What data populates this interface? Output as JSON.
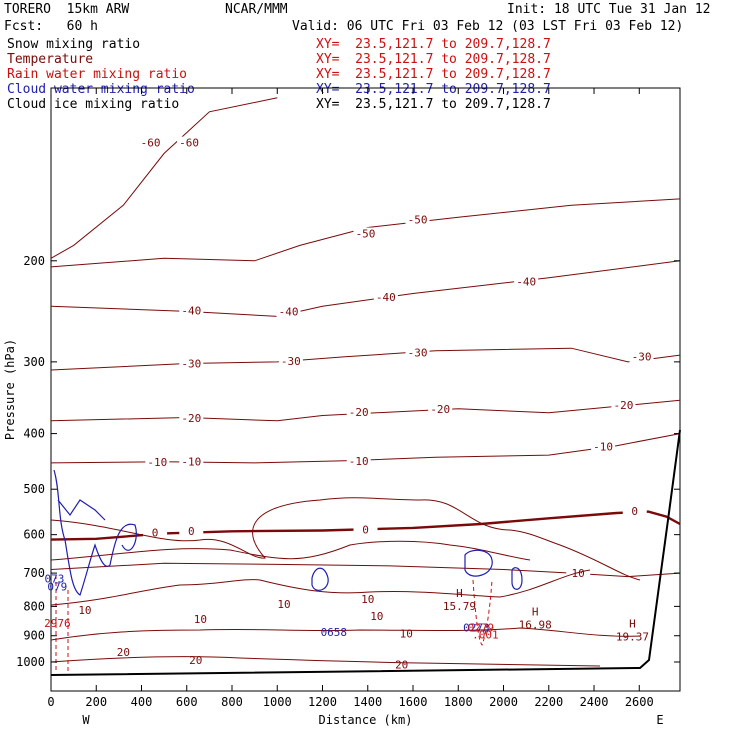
{
  "header": {
    "model": "TORERO  15km ARW",
    "org": "NCAR/MMM",
    "init": "Init: 18 UTC Tue 31 Jan 12",
    "fcst": "Fcst:   60 h",
    "valid": "Valid: 06 UTC Fri 03 Feb 12 (03 LST Fri 03 Feb 12)"
  },
  "legend": {
    "items": [
      {
        "label": "Snow mixing ratio",
        "color": "#000000",
        "xy": "XY=  23.5,121.7 to 209.7,128.7"
      },
      {
        "label": "Temperature",
        "color": "#7a0a0a",
        "xy": "XY=  23.5,121.7 to 209.7,128.7"
      },
      {
        "label": "Rain water mixing ratio",
        "color": "#cc1010",
        "xy": "XY=  23.5,121.7 to 209.7,128.7"
      },
      {
        "label": "Cloud water mixing ratio",
        "color": "#2020b0",
        "xy": "XY=  23.5,121.7 to 209.7,128.7"
      },
      {
        "label": "Cloud ice mixing ratio",
        "color": "#000000",
        "xy": "XY=  23.5,121.7 to 209.7,128.7"
      }
    ]
  },
  "chart_data": {
    "type": "contour cross-section",
    "xlabel": "Distance (km)",
    "ylabel": "Pressure (hPa)",
    "xlim": [
      0,
      2780
    ],
    "ylim_hpa": [
      1030,
      100
    ],
    "x_ticks": [
      0,
      200,
      400,
      600,
      800,
      1000,
      1200,
      1400,
      1600,
      1800,
      2000,
      2200,
      2400,
      2600
    ],
    "x_tick_labels": [
      "0",
      "200",
      "400",
      "600",
      "800",
      "1000",
      "1200",
      "1400",
      "1600",
      "1800",
      "2000",
      "2200",
      "2400",
      "2600"
    ],
    "y_ticks": [
      200,
      300,
      400,
      500,
      600,
      700,
      800,
      900,
      1000
    ],
    "y_tick_labels": [
      "200",
      "300",
      "400",
      "500",
      "600",
      "700",
      "800",
      "900",
      "1000"
    ],
    "left_endpoint": "W",
    "right_endpoint": "E",
    "temperature_contours": [
      {
        "value": -60,
        "points": [
          [
            0,
            198
          ],
          [
            100,
            188
          ],
          [
            320,
            160
          ],
          [
            500,
            130
          ],
          [
            700,
            110
          ],
          [
            1000,
            104
          ]
        ],
        "labels": [
          {
            "text": "-60",
            "x": 440,
            "p": 125
          },
          {
            "text": "-60",
            "x": 610,
            "p": 125
          }
        ]
      },
      {
        "value": -50,
        "points": [
          [
            0,
            205
          ],
          [
            500,
            198
          ],
          [
            900,
            200
          ],
          [
            1100,
            188
          ],
          [
            1400,
            175
          ],
          [
            1800,
            168
          ],
          [
            2300,
            160
          ],
          [
            2780,
            156
          ]
        ],
        "labels": [
          {
            "text": "-50",
            "x": 1390,
            "p": 180
          },
          {
            "text": "-50",
            "x": 1620,
            "p": 170
          }
        ]
      },
      {
        "value": -40,
        "points": [
          [
            0,
            240
          ],
          [
            600,
            245
          ],
          [
            1000,
            250
          ],
          [
            1200,
            240
          ],
          [
            1600,
            228
          ],
          [
            2200,
            214
          ],
          [
            2780,
            200
          ]
        ],
        "labels": [
          {
            "text": "-40",
            "x": 620,
            "p": 245
          },
          {
            "text": "-40",
            "x": 1050,
            "p": 246
          },
          {
            "text": "-40",
            "x": 1480,
            "p": 232
          },
          {
            "text": "-40",
            "x": 2100,
            "p": 218
          }
        ]
      },
      {
        "value": -30,
        "points": [
          [
            0,
            310
          ],
          [
            600,
            302
          ],
          [
            1000,
            300
          ],
          [
            1300,
            294
          ],
          [
            1700,
            287
          ],
          [
            2300,
            284
          ],
          [
            2550,
            300
          ],
          [
            2780,
            292
          ]
        ],
        "labels": [
          {
            "text": "-30",
            "x": 620,
            "p": 303
          },
          {
            "text": "-30",
            "x": 1060,
            "p": 300
          },
          {
            "text": "-30",
            "x": 1620,
            "p": 290
          },
          {
            "text": "-30",
            "x": 2610,
            "p": 295
          }
        ]
      },
      {
        "value": -20,
        "points": [
          [
            0,
            380
          ],
          [
            600,
            375
          ],
          [
            1000,
            380
          ],
          [
            1200,
            372
          ],
          [
            1500,
            367
          ],
          [
            1800,
            362
          ],
          [
            2200,
            368
          ],
          [
            2780,
            350
          ]
        ],
        "labels": [
          {
            "text": "-20",
            "x": 620,
            "p": 377
          },
          {
            "text": "-20",
            "x": 1360,
            "p": 368
          },
          {
            "text": "-20",
            "x": 1720,
            "p": 364
          },
          {
            "text": "-20",
            "x": 2530,
            "p": 358
          }
        ]
      },
      {
        "value": -10,
        "points": [
          [
            0,
            450
          ],
          [
            500,
            448
          ],
          [
            900,
            450
          ],
          [
            1300,
            446
          ],
          [
            1700,
            440
          ],
          [
            2200,
            436
          ],
          [
            2500,
            420
          ],
          [
            2780,
            400
          ]
        ],
        "labels": [
          {
            "text": "-10",
            "x": 470,
            "p": 450
          },
          {
            "text": "-10",
            "x": 620,
            "p": 449
          },
          {
            "text": "-10",
            "x": 1360,
            "p": 448
          },
          {
            "text": "-10",
            "x": 2440,
            "p": 423
          }
        ]
      },
      {
        "value": 0,
        "bold": true,
        "points": [
          [
            0,
            612
          ],
          [
            200,
            610
          ],
          [
            500,
            597
          ],
          [
            800,
            592
          ],
          [
            1200,
            590
          ],
          [
            1600,
            584
          ],
          [
            1900,
            575
          ],
          [
            2200,
            562
          ],
          [
            2500,
            550
          ],
          [
            2640,
            547
          ],
          [
            2720,
            558
          ],
          [
            2780,
            575
          ]
        ],
        "labels": [
          {
            "text": "0",
            "x": 460,
            "p": 597
          },
          {
            "text": "0",
            "x": 620,
            "p": 594
          },
          {
            "text": "0",
            "x": 1390,
            "p": 590
          },
          {
            "text": "0",
            "x": 2580,
            "p": 548
          }
        ]
      },
      {
        "value": 10,
        "points": [
          [
            0,
            690
          ],
          [
            500,
            673
          ],
          [
            1000,
            676
          ],
          [
            1500,
            680
          ],
          [
            2000,
            690
          ],
          [
            2300,
            700
          ],
          [
            2550,
            710
          ],
          [
            2780,
            700
          ]
        ],
        "labels": [
          {
            "text": "10",
            "x": 2330,
            "p": 702
          }
        ]
      }
    ],
    "maxima": [
      {
        "label": "H",
        "value": "15.79",
        "x": 1805,
        "p": 770
      },
      {
        "label": "H",
        "value": "16.98",
        "x": 2140,
        "p": 830
      },
      {
        "label": "H",
        "value": "19.37",
        "x": 2570,
        "p": 870
      }
    ],
    "contour_labels_lower": [
      {
        "text": "10",
        "x": 1030,
        "p": 795
      },
      {
        "text": "10",
        "x": 1400,
        "p": 780
      },
      {
        "text": "10",
        "x": 660,
        "p": 845
      },
      {
        "text": "10",
        "x": 1440,
        "p": 835
      },
      {
        "text": "10",
        "x": 1570,
        "p": 895
      },
      {
        "text": "10",
        "x": 150,
        "p": 815
      },
      {
        "text": "20",
        "x": 320,
        "p": 965
      },
      {
        "text": "20",
        "x": 640,
        "p": 995
      },
      {
        "text": "20",
        "x": 1550,
        "p": 1015
      }
    ],
    "cloud_water_labels": [
      {
        "text": "073",
        "x": 15,
        "p": 718
      },
      {
        "text": "079",
        "x": 28,
        "p": 742
      },
      {
        "text": "0658",
        "x": 1250,
        "p": 890
      },
      {
        "text": "0273",
        "x": 1880,
        "p": 875
      }
    ],
    "rain_labels": [
      {
        "text": "2976",
        "x": 28,
        "p": 858
      },
      {
        "text": ".001",
        "x": 1920,
        "p": 900
      },
      {
        "text": "0279",
        "x": 1900,
        "p": 875
      }
    ]
  }
}
